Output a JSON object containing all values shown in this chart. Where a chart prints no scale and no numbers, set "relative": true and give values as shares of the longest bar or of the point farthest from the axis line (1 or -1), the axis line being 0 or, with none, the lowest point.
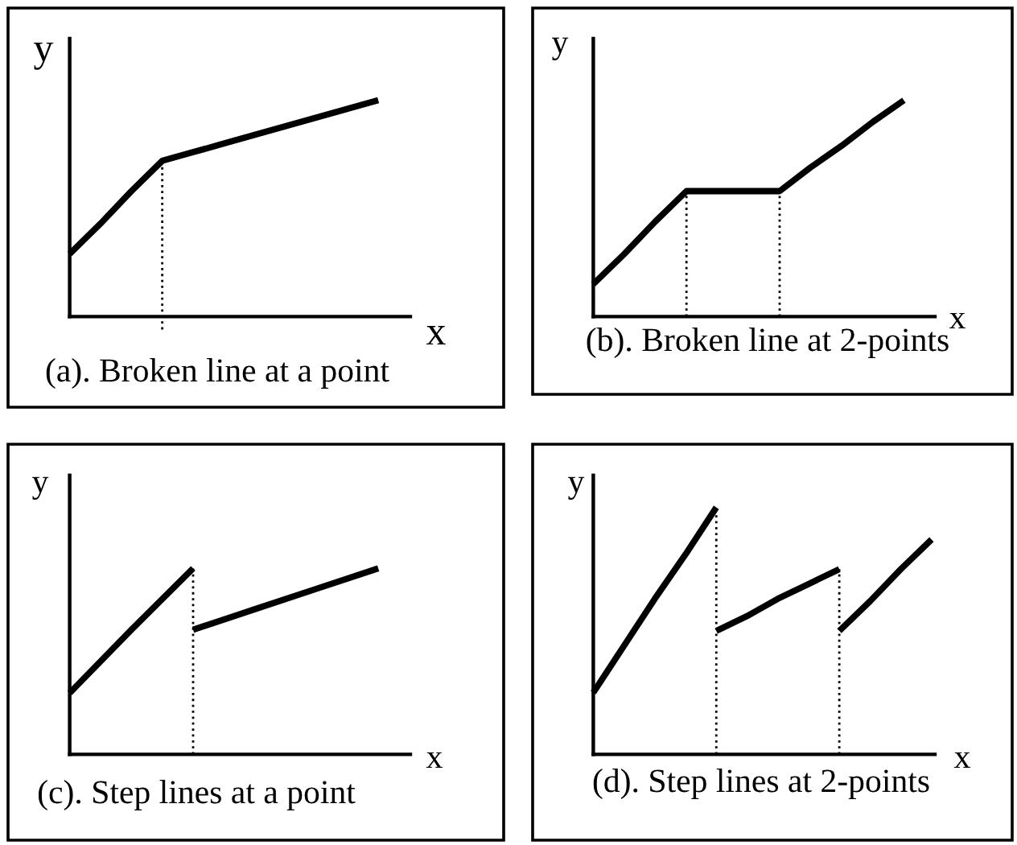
{
  "chart_data": [
    {
      "type": "line",
      "title": "(a). Broken line at a point",
      "xlabel": "x",
      "ylabel": "y",
      "relative": true,
      "categories": [
        null,
        null,
        null,
        null,
        null,
        null,
        null,
        null,
        null,
        null,
        null
      ],
      "series": [
        {
          "color": "#000000",
          "values": [
            0.29,
            0.43,
            0.58,
            0.72,
            0.76,
            0.8,
            0.84,
            0.88,
            0.92,
            0.96,
            1
          ]
        }
      ]
    },
    {
      "type": "line",
      "title": "(b). Broken line at 2-points",
      "xlabel": "x",
      "ylabel": "y",
      "relative": true,
      "categories": [
        null,
        null,
        null,
        null,
        null,
        null,
        null,
        null,
        null,
        null,
        null
      ],
      "series": [
        {
          "color": "#000000",
          "values": [
            0.15,
            0.29,
            0.44,
            0.58,
            0.58,
            0.58,
            0.58,
            0.69,
            0.79,
            0.9,
            1
          ]
        }
      ]
    },
    {
      "type": "line",
      "title": "(c). Step lines at a point",
      "xlabel": "x",
      "ylabel": "y",
      "relative": true,
      "categories": [
        null,
        null,
        null,
        null,
        null,
        null
      ],
      "series": [
        {
          "color": "#000000",
          "values": [
            0.33,
            0.67,
            1,
            null,
            null,
            null
          ]
        },
        {
          "color": "#000000",
          "values": [
            null,
            null,
            0.67,
            0.78,
            0.89,
            1
          ]
        }
      ]
    },
    {
      "type": "line",
      "title": "(d). Step lines at 2-points",
      "xlabel": "x",
      "ylabel": "y",
      "relative": true,
      "categories": [
        null,
        null,
        null,
        null,
        null,
        null,
        null,
        null,
        null,
        null,
        null,
        null
      ],
      "series": [
        {
          "color": "#000000",
          "values": [
            0.25,
            0.44,
            0.63,
            0.81,
            1,
            null,
            null,
            null,
            null,
            null,
            null,
            null
          ]
        },
        {
          "color": "#000000",
          "values": [
            null,
            null,
            null,
            null,
            0.5,
            0.56,
            0.63,
            0.69,
            0.75,
            null,
            null,
            null
          ]
        },
        {
          "color": "#000000",
          "values": [
            null,
            null,
            null,
            null,
            null,
            null,
            null,
            null,
            0.5,
            0.62,
            0.75,
            0.87
          ]
        }
      ]
    }
  ]
}
